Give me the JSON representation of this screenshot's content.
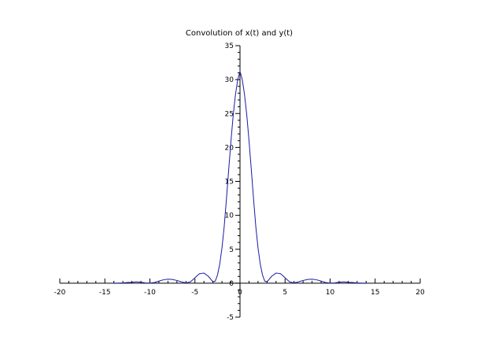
{
  "chart_data": {
    "type": "line",
    "title": "Convolution of x(t) and y(t)",
    "xlabel": "",
    "ylabel": "",
    "xlim": [
      -20,
      20
    ],
    "ylim": [
      -5,
      35
    ],
    "x_ticks": [
      -20,
      -15,
      -10,
      -5,
      0,
      5,
      10,
      15,
      20
    ],
    "y_ticks": [
      -5,
      0,
      5,
      10,
      15,
      20,
      25,
      30,
      35
    ],
    "x_tick_labels": [
      "-20",
      "-15",
      "-10",
      "-5",
      "0",
      "5",
      "10",
      "15",
      "20"
    ],
    "y_tick_labels": [
      "-5",
      "0",
      "5",
      "10",
      "15",
      "20",
      "25",
      "30",
      "35"
    ],
    "axes_location": "origin",
    "grid": false,
    "series": [
      {
        "color": "#1a1aa6",
        "x": [
          -14,
          -13.5,
          -13,
          -12.5,
          -12,
          -11.5,
          -11,
          -10.5,
          -10,
          -9.5,
          -9,
          -8.5,
          -8,
          -7.5,
          -7,
          -6.5,
          -6,
          -5.5,
          -5,
          -4.5,
          -4,
          -3.5,
          -3,
          -2.75,
          -2.5,
          -2.25,
          -2,
          -1.75,
          -1.5,
          -1.25,
          -1,
          -0.75,
          -0.5,
          -0.25,
          0,
          0.25,
          0.5,
          0.75,
          1,
          1.25,
          1.5,
          1.75,
          2,
          2.25,
          2.5,
          2.75,
          3,
          3.5,
          4,
          4.5,
          5,
          5.5,
          6,
          6.5,
          7,
          7.5,
          8,
          8.5,
          9,
          9.5,
          10,
          10.5,
          11,
          11.5,
          12,
          12.5,
          13,
          13.5,
          14
        ],
        "y": [
          0,
          0.02,
          0.05,
          0.1,
          0.15,
          0.2,
          0.15,
          0.05,
          0.02,
          0.1,
          0.3,
          0.5,
          0.6,
          0.55,
          0.4,
          0.2,
          0.05,
          0.2,
          0.8,
          1.4,
          1.5,
          1.0,
          0.2,
          0.3,
          1.2,
          2.8,
          5.2,
          8.4,
          12.5,
          16.8,
          21.0,
          24.8,
          27.8,
          30.0,
          31.2,
          30.0,
          27.8,
          24.8,
          21.0,
          16.8,
          12.5,
          8.4,
          5.2,
          2.8,
          1.2,
          0.3,
          0.2,
          1.0,
          1.5,
          1.4,
          0.8,
          0.2,
          0.05,
          0.2,
          0.4,
          0.55,
          0.6,
          0.5,
          0.3,
          0.1,
          0.02,
          0.05,
          0.15,
          0.2,
          0.15,
          0.1,
          0.05,
          0.02,
          0
        ]
      }
    ]
  }
}
